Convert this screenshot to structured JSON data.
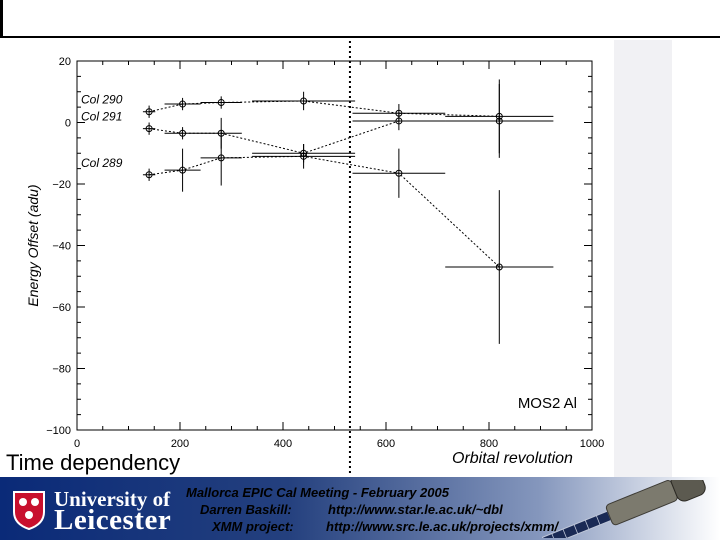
{
  "chart_data": {
    "type": "scatter",
    "xlabel": "",
    "ylabel": "Energy Offset (adu)",
    "xlim": [
      0,
      1000
    ],
    "ylim": [
      -100,
      20
    ],
    "xticks": [
      0,
      200,
      400,
      600,
      800,
      1000
    ],
    "yticks": [
      -100,
      -80,
      -60,
      -40,
      -20,
      0,
      20
    ],
    "x_tick_labels": [
      "0",
      "200",
      "400",
      "600",
      "800",
      "1000"
    ],
    "y_tick_labels": [
      "−100",
      "−80",
      "−60",
      "−40",
      "−20",
      "0",
      "20"
    ],
    "vertical_line_x": 530,
    "annotation": "MOS2 Al",
    "series": [
      {
        "name": "Col 290",
        "points": [
          {
            "x": 140,
            "y": 3.5,
            "xerr": 12,
            "yerr": 2
          },
          {
            "x": 205,
            "y": 6,
            "xerr": 35,
            "yerr": 2
          },
          {
            "x": 280,
            "y": 6.5,
            "xerr": 40,
            "yerr": 2
          },
          {
            "x": 440,
            "y": 7,
            "xerr": 100,
            "yerr": 3
          },
          {
            "x": 625,
            "y": 3,
            "xerr": 90,
            "yerr": 3
          },
          {
            "x": 820,
            "y": 2,
            "xerr": 105,
            "yerr": 12
          }
        ]
      },
      {
        "name": "Col 291",
        "points": [
          {
            "x": 140,
            "y": -2,
            "xerr": 12,
            "yerr": 2
          },
          {
            "x": 205,
            "y": -3.5,
            "xerr": 35,
            "yerr": 2
          },
          {
            "x": 280,
            "y": -3.5,
            "xerr": 40,
            "yerr": 5
          },
          {
            "x": 440,
            "y": -10,
            "xerr": 100,
            "yerr": 3
          },
          {
            "x": 625,
            "y": 0.5,
            "xerr": 90,
            "yerr": 3
          },
          {
            "x": 820,
            "y": 0.5,
            "xerr": 105,
            "yerr": 12
          }
        ]
      },
      {
        "name": "Col 289",
        "points": [
          {
            "x": 140,
            "y": -17,
            "xerr": 12,
            "yerr": 2
          },
          {
            "x": 205,
            "y": -15.5,
            "xerr": 35,
            "yerr": 7
          },
          {
            "x": 280,
            "y": -11.5,
            "xerr": 40,
            "yerr": 9
          },
          {
            "x": 440,
            "y": -11,
            "xerr": 100,
            "yerr": 4
          },
          {
            "x": 625,
            "y": -16.5,
            "xerr": 90,
            "yerr": 8
          },
          {
            "x": 820,
            "y": -47,
            "xerr": 105,
            "yerr": 25
          }
        ]
      }
    ]
  },
  "captions": {
    "left": "Time dependency",
    "right": "Orbital revolution"
  },
  "footer": {
    "university_line1": "University of",
    "university_line2": "Leicester",
    "meeting_title": "Mallorca EPIC Cal Meeting - February 2005",
    "author_label": "Darren Baskill:",
    "author_url": "http://www.star.le.ac.uk/~dbl",
    "project_label": "XMM project:",
    "project_url": "http://www.src.le.ac.uk/projects/xmm/"
  },
  "colors": {
    "footer_blue": "#0a2a78",
    "plot_line": "#000000"
  }
}
